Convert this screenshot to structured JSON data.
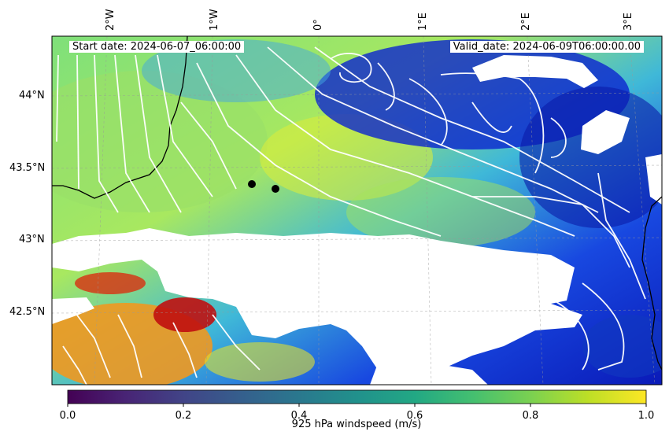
{
  "map": {
    "start_date_text": "Start date: 2024-06-07_06:00:00",
    "valid_date_text": "Valid_date: 2024-06-09T06:00:00.00",
    "longitude_labels": [
      "2°W",
      "1°W",
      "0°",
      "1°E",
      "2°E",
      "3°E"
    ],
    "latitude_labels": [
      "44°N",
      "43.5°N",
      "43°N",
      "42.5°N"
    ],
    "points_of_interest_count": 2,
    "streamline_color": "#ffffff",
    "coastline_color": "#000000",
    "no_data_color": "#ffffff"
  },
  "colorbar": {
    "label": "925 hPa windspeed (m/s)",
    "ticks": [
      "0.0",
      "0.2",
      "0.4",
      "0.6",
      "0.8",
      "1.0"
    ],
    "min": 0.0,
    "max": 1.0,
    "colormap": "viridis"
  },
  "field_colormap": "jet"
}
